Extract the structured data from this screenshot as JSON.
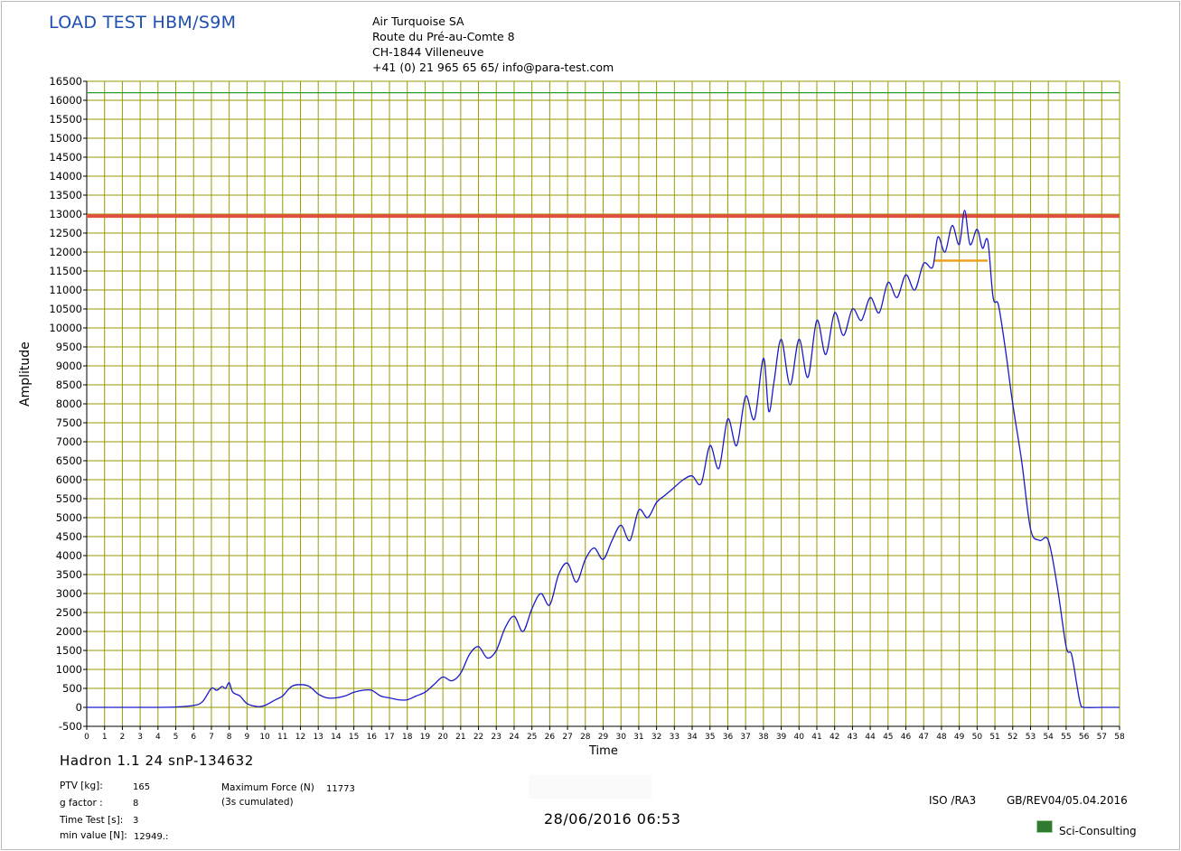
{
  "header": {
    "title": "LOAD TEST HBM/S9M",
    "company_lines": [
      "Air Turquoise SA",
      "Route du Pré-au-Comte 8",
      "CH-1844 Villeneuve",
      "+41 (0) 21 965 65 65/ info@para-test.com"
    ]
  },
  "footer": {
    "device": "Hadron 1.1 24 snP-134632",
    "ptv_label": "PTV [kg]:",
    "ptv_value": "165",
    "g_label": "g factor :",
    "g_value": "8",
    "time_label": "Time Test [s]:",
    "time_value": "3",
    "min_label": "min value [N]:",
    "min_value": "12949.:",
    "max_force_label": "Maximum Force (N)",
    "max_force_value": "11773",
    "cumulated_label": "(3s cumulated)",
    "datetime": "28/06/2016 06:53",
    "iso": "ISO /RA3",
    "revision": "GB/REV04/05.04.2016",
    "brand": "Sci-Consulting"
  },
  "chart_data": {
    "type": "line",
    "xlabel": "Time",
    "ylabel": "Amplitude",
    "xlim": [
      0,
      58
    ],
    "ylim": [
      -500,
      16500
    ],
    "x_ticks": [
      0,
      1,
      2,
      3,
      4,
      5,
      6,
      7,
      8,
      9,
      10,
      11,
      12,
      13,
      14,
      15,
      16,
      17,
      18,
      19,
      20,
      21,
      22,
      23,
      24,
      25,
      26,
      27,
      28,
      29,
      30,
      31,
      32,
      33,
      34,
      35,
      36,
      37,
      38,
      39,
      40,
      41,
      42,
      43,
      44,
      45,
      46,
      47,
      48,
      49,
      50,
      51,
      52,
      53,
      54,
      55,
      56,
      57,
      58
    ],
    "y_ticks": [
      -500,
      0,
      500,
      1000,
      1500,
      2000,
      2500,
      3000,
      3500,
      4000,
      4500,
      5000,
      5500,
      6000,
      6500,
      7000,
      7500,
      8000,
      8500,
      9000,
      9500,
      10000,
      10500,
      11000,
      11500,
      12000,
      12500,
      13000,
      13500,
      14000,
      14500,
      15000,
      15500,
      16000,
      16500
    ],
    "grid": true,
    "colors": {
      "grid": "#9a9a00",
      "series": "#1a1acc",
      "limit_red": "#e0503c",
      "limit_green": "#2f9a2f",
      "avg_orange": "#f0a020"
    },
    "reference_lines": [
      {
        "y": 16200,
        "color": "#2f9a2f"
      },
      {
        "y": 12949,
        "color": "#e0503c"
      }
    ],
    "segment": {
      "x": [
        47.6,
        50.6
      ],
      "y": 11773,
      "color": "#f0a020"
    },
    "series": [
      {
        "x": [
          0,
          2,
          4,
          5,
          6,
          6.5,
          7,
          7.3,
          7.6,
          7.8,
          8.0,
          8.2,
          8.6,
          9,
          9.6,
          10,
          10.6,
          11,
          11.5,
          12,
          12.5,
          13,
          13.5,
          14,
          14.5,
          15,
          15.5,
          16,
          16.5,
          17,
          17.5,
          18,
          18.5,
          19,
          19.5,
          20,
          20.5,
          21,
          21.5,
          22,
          22.5,
          23,
          23.5,
          24,
          24.5,
          25,
          25.5,
          26,
          26.5,
          27,
          27.5,
          28,
          28.5,
          29,
          29.5,
          30,
          30.5,
          31,
          31.5,
          32,
          32.5,
          33,
          33.5,
          34,
          34.5,
          35,
          35.5,
          36,
          36.5,
          37,
          37.5,
          38,
          38.3,
          38.6,
          39,
          39.5,
          40,
          40.5,
          41,
          41.5,
          42,
          42.5,
          43,
          43.5,
          44,
          44.5,
          45,
          45.5,
          46,
          46.5,
          47,
          47.5,
          47.8,
          48.2,
          48.6,
          49.0,
          49.3,
          49.6,
          50.0,
          50.3,
          50.6,
          50.9,
          51.2,
          51.6,
          52,
          52.5,
          53,
          53.5,
          54,
          54.5,
          55,
          55.3,
          55.6,
          55.8,
          56,
          57,
          58
        ],
        "values": [
          0,
          0,
          0,
          10,
          50,
          150,
          500,
          450,
          550,
          500,
          650,
          400,
          300,
          100,
          20,
          50,
          200,
          300,
          550,
          600,
          550,
          350,
          250,
          250,
          300,
          400,
          450,
          450,
          300,
          250,
          200,
          200,
          300,
          400,
          600,
          800,
          700,
          900,
          1400,
          1600,
          1300,
          1500,
          2100,
          2400,
          2000,
          2600,
          3000,
          2700,
          3500,
          3800,
          3300,
          3900,
          4200,
          3900,
          4400,
          4800,
          4400,
          5200,
          5000,
          5400,
          5600,
          5800,
          6000,
          6100,
          5900,
          6900,
          6300,
          7600,
          6900,
          8200,
          7600,
          9200,
          7800,
          8600,
          9700,
          8500,
          9700,
          8700,
          10200,
          9300,
          10400,
          9800,
          10500,
          10200,
          10800,
          10400,
          11200,
          10800,
          11400,
          11000,
          11700,
          11600,
          12400,
          12000,
          12700,
          12200,
          13100,
          12200,
          12600,
          12100,
          12300,
          10800,
          10600,
          9400,
          8000,
          6500,
          4700,
          4400,
          4400,
          3200,
          1600,
          1400,
          600,
          100,
          0,
          0,
          0
        ]
      }
    ]
  }
}
